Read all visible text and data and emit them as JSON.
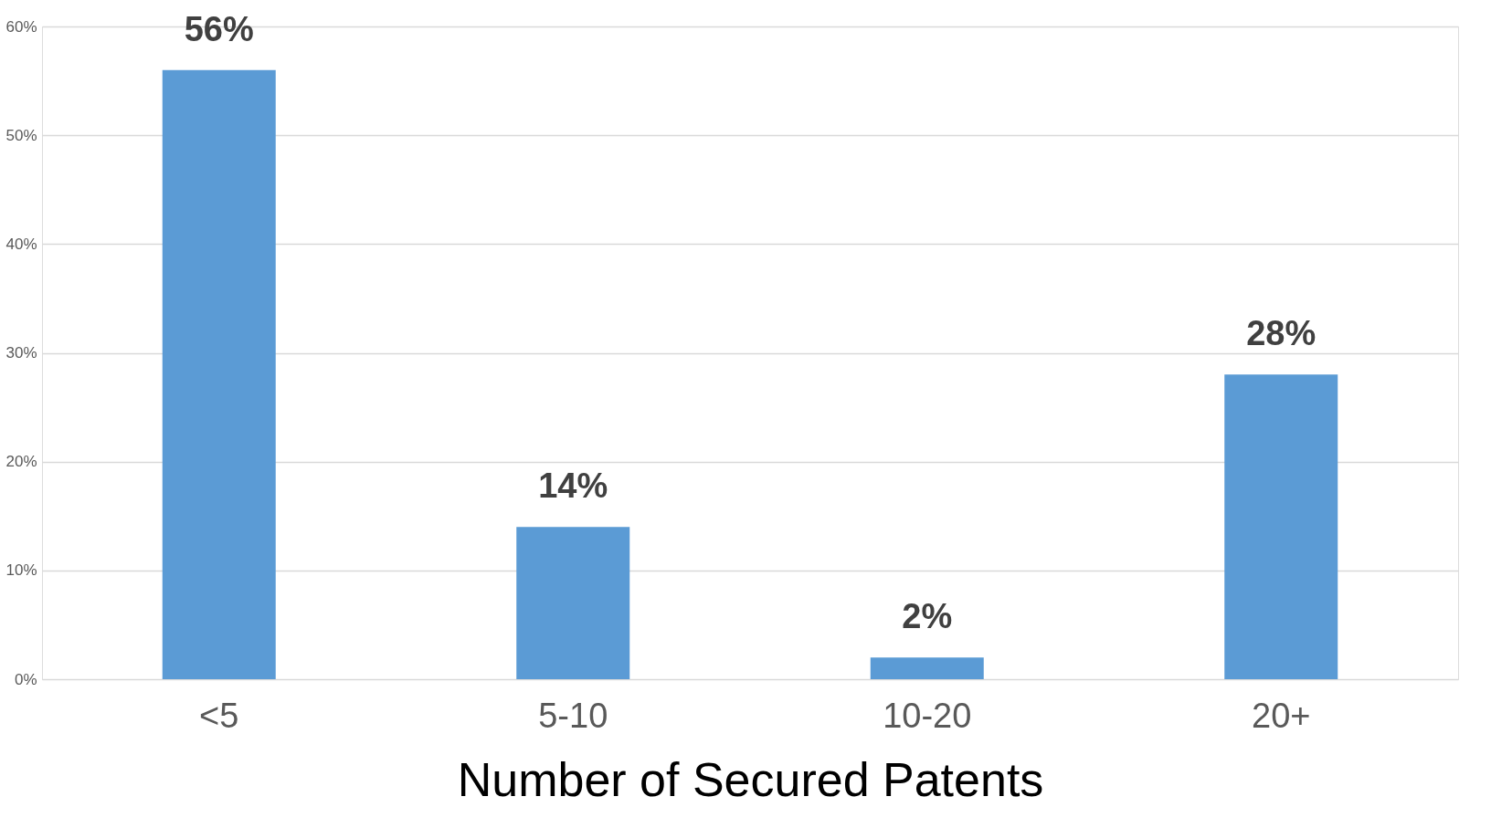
{
  "chart_data": {
    "type": "bar",
    "xlabel": "Number of Secured Patents",
    "categories": [
      "<5",
      "5-10",
      "10-20",
      "20+"
    ],
    "values": [
      56,
      14,
      2,
      28
    ],
    "color": "#5b9bd5",
    "value_labels": [
      "56%",
      "14%",
      "2%",
      "28%"
    ],
    "ylim": [
      0,
      60
    ],
    "yticks": [
      {
        "value": 0,
        "label": "0%"
      },
      {
        "value": 10,
        "label": "10%"
      },
      {
        "value": 20,
        "label": "20%"
      },
      {
        "value": 30,
        "label": "30%"
      },
      {
        "value": 40,
        "label": "40%"
      },
      {
        "value": 50,
        "label": "50%"
      },
      {
        "value": 60,
        "label": "60%"
      }
    ],
    "grid": "y"
  }
}
